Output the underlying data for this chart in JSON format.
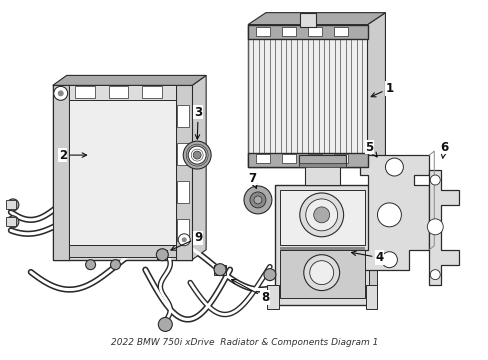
{
  "title": "2022 BMW 750i xDrive",
  "subtitle": "Radiator & Components Diagram 1",
  "bg_color": "#ffffff",
  "lc": "#2a2a2a",
  "gray1": "#cccccc",
  "gray2": "#dddddd",
  "gray3": "#aaaaaa",
  "gray4": "#888888",
  "gray5": "#eeeeee",
  "figsize": [
    4.89,
    3.6
  ],
  "dpi": 100
}
